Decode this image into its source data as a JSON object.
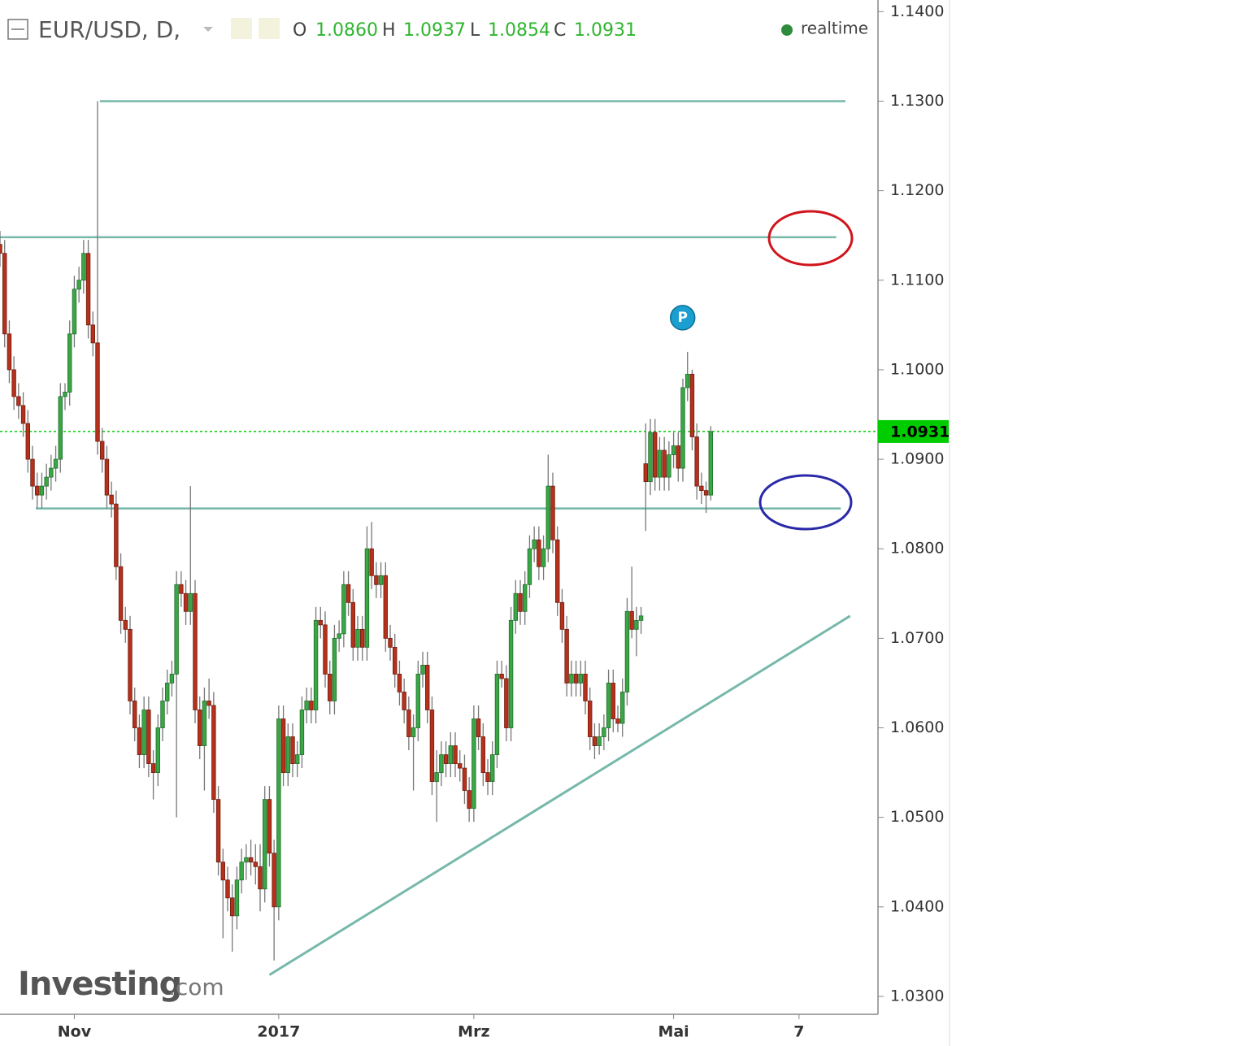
{
  "chart_data": {
    "type": "candlestick",
    "title": "EUR/USD, D,",
    "header_letters": [
      "O",
      "H",
      "L",
      "C"
    ],
    "header_values": [
      "1.0860",
      "1.0937",
      "1.0854",
      "1.0931"
    ],
    "status": "realtime",
    "logo": [
      "Investing",
      ".com"
    ],
    "marker": {
      "label": "P",
      "candle": 148
    },
    "up_color": "#3aa646",
    "down_color": "#b5311c",
    "line_color": "#76b8aa",
    "last_color": "#00cc00",
    "xlim": [
      0,
      189
    ],
    "xticks": [
      {
        "value": 16,
        "label": "Nov"
      },
      {
        "value": 60,
        "label": "2017"
      },
      {
        "value": 102,
        "label": "Mrz"
      },
      {
        "value": 145,
        "label": "Mai"
      },
      {
        "value": 172,
        "label": "7"
      }
    ],
    "ylim": [
      1.028,
      1.1413
    ],
    "yticks": [
      {
        "value": 1.03,
        "label": "1.0300"
      },
      {
        "value": 1.04,
        "label": "1.0400"
      },
      {
        "value": 1.05,
        "label": "1.0500"
      },
      {
        "value": 1.06,
        "label": "1.0600"
      },
      {
        "value": 1.07,
        "label": "1.0700"
      },
      {
        "value": 1.08,
        "label": "1.0800"
      },
      {
        "value": 1.09,
        "label": "1.0900"
      },
      {
        "value": 1.1,
        "label": "1.1000"
      },
      {
        "value": 1.11,
        "label": "1.1100"
      },
      {
        "value": 1.12,
        "label": "1.1200"
      },
      {
        "value": 1.13,
        "label": "1.1300"
      },
      {
        "value": 1.14,
        "label": "1.1400"
      }
    ],
    "last_price": 1.0931,
    "hlines": [
      {
        "y": 1.13,
        "x": [
          21.5,
          182
        ]
      },
      {
        "y": 1.1148,
        "x": [
          0,
          180
        ]
      },
      {
        "y": 1.0845,
        "x": [
          7.7,
          181
        ]
      }
    ],
    "trendline": {
      "x": [
        58,
        183
      ],
      "y": [
        1.0324,
        1.0725
      ]
    },
    "candles": [
      [
        1.114,
        1.1155,
        1.1115,
        1.113
      ],
      [
        1.113,
        1.1145,
        1.1025,
        1.104
      ],
      [
        1.104,
        1.1055,
        1.0985,
        1.1
      ],
      [
        1.1,
        1.1015,
        1.0955,
        1.097
      ],
      [
        1.097,
        1.0985,
        1.0945,
        1.096
      ],
      [
        1.096,
        1.0975,
        1.0925,
        1.094
      ],
      [
        1.094,
        1.0955,
        1.0885,
        1.09
      ],
      [
        1.09,
        1.0915,
        1.0855,
        1.087
      ],
      [
        1.087,
        1.0885,
        1.0845,
        1.086
      ],
      [
        1.086,
        1.0885,
        1.0845,
        1.087
      ],
      [
        1.087,
        1.0895,
        1.0855,
        1.088
      ],
      [
        1.088,
        1.0905,
        1.0865,
        1.089
      ],
      [
        1.089,
        1.0915,
        1.0875,
        1.09
      ],
      [
        1.09,
        1.0985,
        1.0885,
        1.097
      ],
      [
        1.097,
        1.0985,
        1.0955,
        1.0975
      ],
      [
        1.0975,
        1.1055,
        1.096,
        1.104
      ],
      [
        1.104,
        1.1105,
        1.1025,
        1.109
      ],
      [
        1.109,
        1.1115,
        1.1075,
        1.11
      ],
      [
        1.11,
        1.1145,
        1.1085,
        1.113
      ],
      [
        1.113,
        1.1145,
        1.1035,
        1.105
      ],
      [
        1.105,
        1.1065,
        1.1015,
        1.103
      ],
      [
        1.103,
        1.13,
        1.0905,
        1.092
      ],
      [
        1.092,
        1.0935,
        1.0885,
        1.09
      ],
      [
        1.09,
        1.0915,
        1.0845,
        1.086
      ],
      [
        1.086,
        1.0875,
        1.0835,
        1.085
      ],
      [
        1.085,
        1.0865,
        1.0765,
        1.078
      ],
      [
        1.078,
        1.0795,
        1.0705,
        1.072
      ],
      [
        1.072,
        1.0735,
        1.0695,
        1.071
      ],
      [
        1.071,
        1.0725,
        1.0615,
        1.063
      ],
      [
        1.063,
        1.0645,
        1.0585,
        1.06
      ],
      [
        1.06,
        1.0615,
        1.0555,
        1.057
      ],
      [
        1.057,
        1.0635,
        1.0555,
        1.062
      ],
      [
        1.062,
        1.0635,
        1.0545,
        1.056
      ],
      [
        1.056,
        1.0575,
        1.052,
        1.055
      ],
      [
        1.055,
        1.0615,
        1.0535,
        1.06
      ],
      [
        1.06,
        1.0645,
        1.0585,
        1.063
      ],
      [
        1.063,
        1.0665,
        1.0615,
        1.065
      ],
      [
        1.065,
        1.0675,
        1.0635,
        1.066
      ],
      [
        1.066,
        1.0775,
        1.05,
        1.076
      ],
      [
        1.076,
        1.0775,
        1.0735,
        1.075
      ],
      [
        1.075,
        1.0765,
        1.0715,
        1.073
      ],
      [
        1.073,
        1.087,
        1.0715,
        1.075
      ],
      [
        1.075,
        1.0765,
        1.0605,
        1.062
      ],
      [
        1.062,
        1.0635,
        1.0565,
        1.058
      ],
      [
        1.058,
        1.0645,
        1.053,
        1.063
      ],
      [
        1.063,
        1.0655,
        1.061,
        1.0625
      ],
      [
        1.0625,
        1.064,
        1.0505,
        1.052
      ],
      [
        1.052,
        1.0535,
        1.0435,
        1.045
      ],
      [
        1.045,
        1.0465,
        1.0365,
        1.043
      ],
      [
        1.043,
        1.0445,
        1.0395,
        1.041
      ],
      [
        1.041,
        1.0425,
        1.035,
        1.039
      ],
      [
        1.039,
        1.0445,
        1.0375,
        1.043
      ],
      [
        1.043,
        1.0465,
        1.0415,
        1.045
      ],
      [
        1.045,
        1.047,
        1.043,
        1.0455
      ],
      [
        1.0455,
        1.0475,
        1.0435,
        1.045
      ],
      [
        1.045,
        1.047,
        1.0425,
        1.0445
      ],
      [
        1.0445,
        1.047,
        1.0395,
        1.042
      ],
      [
        1.042,
        1.0535,
        1.0405,
        1.052
      ],
      [
        1.052,
        1.0535,
        1.0445,
        1.046
      ],
      [
        1.046,
        1.0475,
        1.034,
        1.04
      ],
      [
        1.04,
        1.0625,
        1.0385,
        1.061
      ],
      [
        1.061,
        1.0625,
        1.0535,
        1.055
      ],
      [
        1.055,
        1.0605,
        1.0535,
        1.059
      ],
      [
        1.059,
        1.0605,
        1.0545,
        1.056
      ],
      [
        1.056,
        1.0585,
        1.0545,
        1.057
      ],
      [
        1.057,
        1.0635,
        1.0555,
        1.062
      ],
      [
        1.062,
        1.0645,
        1.0605,
        1.063
      ],
      [
        1.063,
        1.0645,
        1.0605,
        1.062
      ],
      [
        1.062,
        1.0735,
        1.0605,
        1.072
      ],
      [
        1.072,
        1.0735,
        1.07,
        1.0715
      ],
      [
        1.0715,
        1.073,
        1.0645,
        1.066
      ],
      [
        1.066,
        1.0675,
        1.0615,
        1.063
      ],
      [
        1.063,
        1.0715,
        1.0615,
        1.07
      ],
      [
        1.07,
        1.072,
        1.0685,
        1.0705
      ],
      [
        1.0705,
        1.0775,
        1.069,
        1.076
      ],
      [
        1.076,
        1.0775,
        1.0725,
        1.074
      ],
      [
        1.074,
        1.0755,
        1.0675,
        1.069
      ],
      [
        1.069,
        1.0725,
        1.0675,
        1.071
      ],
      [
        1.071,
        1.0725,
        1.0675,
        1.069
      ],
      [
        1.069,
        1.0825,
        1.0675,
        1.08
      ],
      [
        1.08,
        1.083,
        1.0755,
        1.077
      ],
      [
        1.077,
        1.0785,
        1.0745,
        1.076
      ],
      [
        1.076,
        1.0785,
        1.0745,
        1.077
      ],
      [
        1.077,
        1.0785,
        1.0685,
        1.07
      ],
      [
        1.07,
        1.0715,
        1.0675,
        1.069
      ],
      [
        1.069,
        1.0705,
        1.0645,
        1.066
      ],
      [
        1.066,
        1.0675,
        1.0625,
        1.064
      ],
      [
        1.064,
        1.0655,
        1.0605,
        1.062
      ],
      [
        1.062,
        1.0635,
        1.0575,
        1.059
      ],
      [
        1.059,
        1.0615,
        1.053,
        1.06
      ],
      [
        1.06,
        1.0675,
        1.0585,
        1.066
      ],
      [
        1.066,
        1.0685,
        1.0645,
        1.067
      ],
      [
        1.067,
        1.0685,
        1.0605,
        1.062
      ],
      [
        1.062,
        1.0635,
        1.0525,
        1.054
      ],
      [
        1.054,
        1.0575,
        1.0495,
        1.055
      ],
      [
        1.055,
        1.0585,
        1.0535,
        1.057
      ],
      [
        1.057,
        1.0585,
        1.0545,
        1.056
      ],
      [
        1.056,
        1.0595,
        1.0545,
        1.058
      ],
      [
        1.058,
        1.0595,
        1.0545,
        1.056
      ],
      [
        1.056,
        1.0575,
        1.054,
        1.0555
      ],
      [
        1.0555,
        1.057,
        1.0515,
        1.053
      ],
      [
        1.053,
        1.0545,
        1.0495,
        1.051
      ],
      [
        1.051,
        1.0625,
        1.0495,
        1.061
      ],
      [
        1.061,
        1.0625,
        1.0575,
        1.059
      ],
      [
        1.059,
        1.0605,
        1.0535,
        1.055
      ],
      [
        1.055,
        1.0565,
        1.0525,
        1.054
      ],
      [
        1.054,
        1.0585,
        1.0525,
        1.057
      ],
      [
        1.057,
        1.0675,
        1.0555,
        1.066
      ],
      [
        1.066,
        1.0675,
        1.0645,
        1.0655
      ],
      [
        1.0655,
        1.067,
        1.0585,
        1.06
      ],
      [
        1.06,
        1.0735,
        1.0585,
        1.072
      ],
      [
        1.072,
        1.0765,
        1.0705,
        1.075
      ],
      [
        1.075,
        1.0765,
        1.0715,
        1.073
      ],
      [
        1.073,
        1.0775,
        1.0715,
        1.076
      ],
      [
        1.076,
        1.0815,
        1.0745,
        1.08
      ],
      [
        1.08,
        1.0825,
        1.0785,
        1.081
      ],
      [
        1.081,
        1.0825,
        1.0765,
        1.078
      ],
      [
        1.078,
        1.0815,
        1.0765,
        1.08
      ],
      [
        1.08,
        1.0905,
        1.0785,
        1.087
      ],
      [
        1.087,
        1.0885,
        1.0795,
        1.081
      ],
      [
        1.081,
        1.0825,
        1.0725,
        1.074
      ],
      [
        1.074,
        1.0755,
        1.0695,
        1.071
      ],
      [
        1.071,
        1.0725,
        1.0635,
        1.065
      ],
      [
        1.065,
        1.0675,
        1.0635,
        1.066
      ],
      [
        1.066,
        1.0675,
        1.0635,
        1.065
      ],
      [
        1.065,
        1.0675,
        1.0635,
        1.066
      ],
      [
        1.066,
        1.0675,
        1.0615,
        1.063
      ],
      [
        1.063,
        1.0645,
        1.0575,
        1.059
      ],
      [
        1.059,
        1.0605,
        1.0565,
        1.058
      ],
      [
        1.058,
        1.0605,
        1.057,
        1.059
      ],
      [
        1.059,
        1.0615,
        1.0575,
        1.06
      ],
      [
        1.06,
        1.0665,
        1.0585,
        1.065
      ],
      [
        1.065,
        1.0665,
        1.0595,
        1.061
      ],
      [
        1.061,
        1.0625,
        1.0595,
        1.0605
      ],
      [
        1.0605,
        1.0655,
        1.059,
        1.064
      ],
      [
        1.064,
        1.0745,
        1.0625,
        1.073
      ],
      [
        1.073,
        1.078,
        1.07,
        1.071
      ],
      [
        1.071,
        1.0735,
        1.068,
        1.072
      ],
      [
        1.072,
        1.0735,
        1.0705,
        1.0725
      ],
      [
        1.0895,
        1.094,
        1.082,
        1.0875
      ],
      [
        1.0875,
        1.0945,
        1.086,
        1.093
      ],
      [
        1.093,
        1.0945,
        1.0865,
        1.088
      ],
      [
        1.088,
        1.0925,
        1.0865,
        1.091
      ],
      [
        1.091,
        1.0925,
        1.0865,
        1.088
      ],
      [
        1.088,
        1.092,
        1.0865,
        1.0905
      ],
      [
        1.0905,
        1.093,
        1.089,
        1.0915
      ],
      [
        1.0915,
        1.093,
        1.0875,
        1.089
      ],
      [
        1.089,
        1.099,
        1.0875,
        1.098
      ],
      [
        1.098,
        1.102,
        1.0965,
        1.0995
      ],
      [
        1.0995,
        1.1,
        1.091,
        1.0925
      ],
      [
        1.0925,
        1.094,
        1.0855,
        1.087
      ],
      [
        1.087,
        1.0885,
        1.085,
        1.0865
      ],
      [
        1.0865,
        1.0875,
        1.084,
        1.086
      ],
      [
        1.086,
        1.0937,
        1.0854,
        1.0931
      ]
    ]
  }
}
